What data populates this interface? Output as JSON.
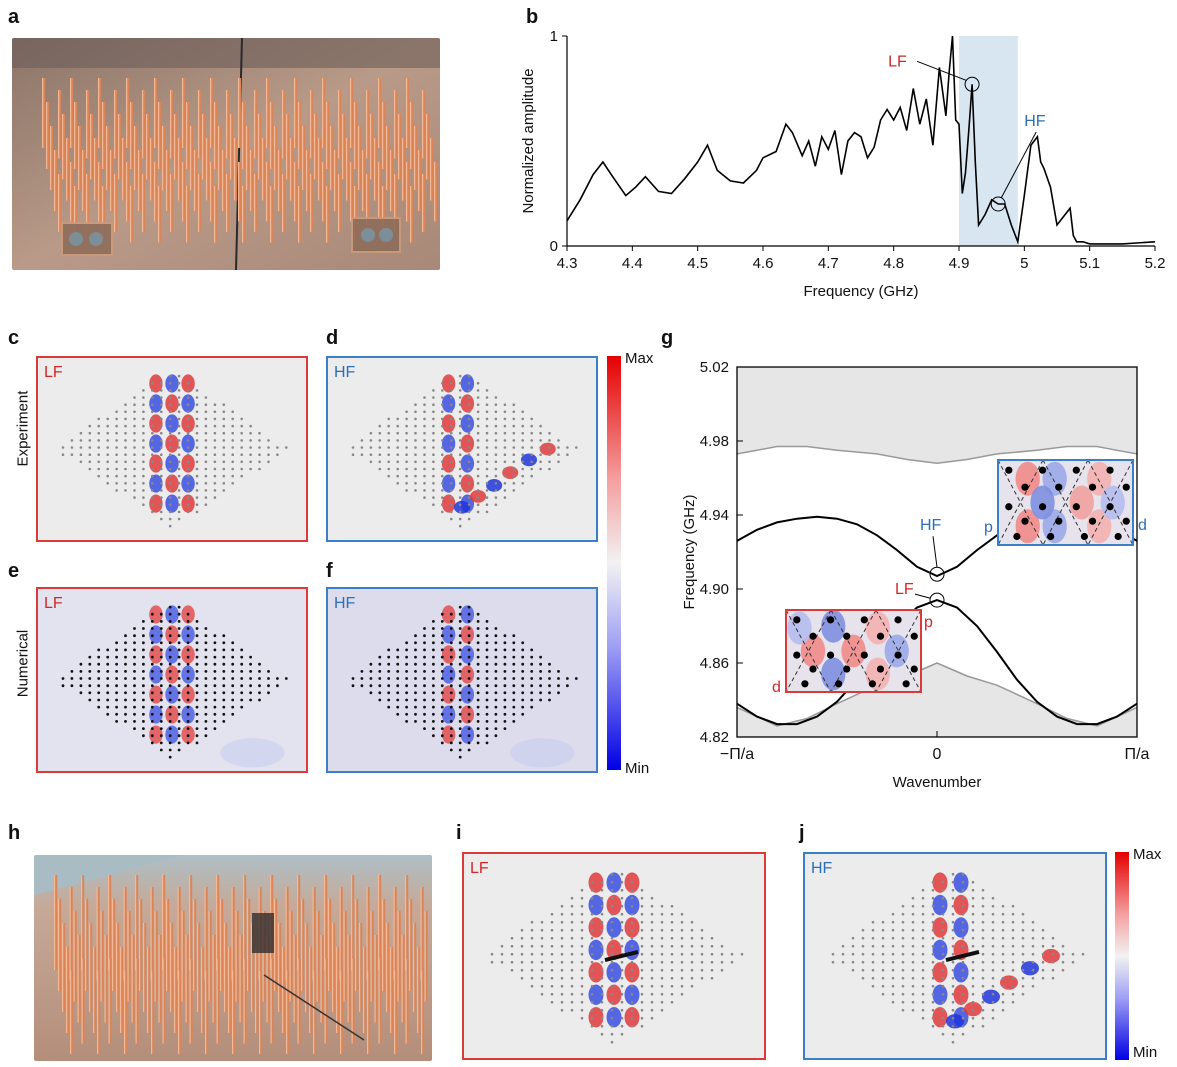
{
  "panels": {
    "a": "a",
    "b": "b",
    "c": "c",
    "d": "d",
    "e": "e",
    "f": "f",
    "g": "g",
    "h": "h",
    "i": "i",
    "j": "j"
  },
  "row_labels": {
    "experiment": "Experiment",
    "numerical": "Numerical"
  },
  "map_labels": {
    "lf": "LF",
    "hf": "HF"
  },
  "colorbar": {
    "max": "Max",
    "min": "Min"
  },
  "colors": {
    "red_frame": "#d93a3a",
    "blue_frame": "#3a7fc8",
    "band_highlight": "#d8e6f2",
    "gap_fill": "#e6e6e6"
  },
  "chart_data": [
    {
      "type": "line",
      "panel": "b",
      "xlabel": "Frequency (GHz)",
      "ylabel": "Normalized amplitude",
      "xlim": [
        4.3,
        5.2
      ],
      "ylim": [
        0,
        1
      ],
      "xticks": [
        "4.3",
        "4.4",
        "4.5",
        "4.6",
        "4.7",
        "4.8",
        "4.9",
        "5",
        "5.1",
        "5.2"
      ],
      "yticks": [
        "0",
        "1"
      ],
      "highlight_band": [
        4.9,
        4.99
      ],
      "annotations": [
        {
          "text": "LF",
          "x": 4.92,
          "y": 0.77
        },
        {
          "text": "HF",
          "x": 4.96,
          "y": 0.2
        }
      ],
      "series": [
        {
          "x": [
            4.3,
            4.32,
            4.34,
            4.355,
            4.37,
            4.39,
            4.405,
            4.42,
            4.44,
            4.46,
            4.48,
            4.5,
            4.515,
            4.53,
            4.55,
            4.57,
            4.59,
            4.6,
            4.62,
            4.635,
            4.645,
            4.66,
            4.67,
            4.68,
            4.69,
            4.7,
            4.71,
            4.72,
            4.73,
            4.74,
            4.75,
            4.76,
            4.77,
            4.78,
            4.79,
            4.8,
            4.81,
            4.82,
            4.83,
            4.84,
            4.85,
            4.86,
            4.87,
            4.88,
            4.885,
            4.89,
            4.895,
            4.9,
            4.905,
            4.91,
            4.915,
            4.92,
            4.925,
            4.93,
            4.94,
            4.95,
            4.96,
            4.97,
            4.98,
            4.99,
            5.0,
            5.01,
            5.02,
            5.025,
            5.03,
            5.04,
            5.05,
            5.06,
            5.07,
            5.075,
            5.08,
            5.09,
            5.1,
            5.15,
            5.2
          ],
          "y": [
            0.12,
            0.22,
            0.34,
            0.4,
            0.33,
            0.24,
            0.28,
            0.33,
            0.26,
            0.25,
            0.32,
            0.4,
            0.48,
            0.36,
            0.31,
            0.3,
            0.36,
            0.42,
            0.45,
            0.58,
            0.54,
            0.43,
            0.5,
            0.38,
            0.52,
            0.46,
            0.55,
            0.34,
            0.5,
            0.54,
            0.52,
            0.42,
            0.47,
            0.6,
            0.65,
            0.6,
            0.66,
            0.55,
            0.75,
            0.58,
            0.7,
            0.48,
            0.85,
            0.62,
            0.83,
            1.0,
            0.6,
            0.58,
            0.25,
            0.35,
            0.55,
            0.77,
            0.4,
            0.1,
            0.15,
            0.22,
            0.2,
            0.2,
            0.1,
            0.02,
            0.24,
            0.48,
            0.52,
            0.4,
            0.37,
            0.28,
            0.1,
            0.14,
            0.18,
            0.05,
            0.02,
            0.02,
            0.01,
            0.01,
            0.02
          ]
        }
      ]
    },
    {
      "type": "line",
      "panel": "g",
      "xlabel": "Wavenumber",
      "ylabel": "Frequency (GHz)",
      "xlim": [
        -1,
        1
      ],
      "ylim": [
        4.82,
        5.02
      ],
      "xticks": [
        "−Π/a",
        "0",
        "Π/a"
      ],
      "yticks": [
        "4.82",
        "4.86",
        "4.90",
        "4.94",
        "4.98",
        "5.02"
      ],
      "annotations": [
        {
          "text": "HF",
          "x": 0,
          "y": 4.908
        },
        {
          "text": "LF",
          "x": 0,
          "y": 4.894
        }
      ],
      "inset_labels": {
        "upper_p": "p",
        "upper_d": "d",
        "lower_p": "p",
        "lower_d": "d"
      },
      "upper_bulk_edge": {
        "x": [
          -1,
          -0.9,
          -0.8,
          -0.65,
          -0.5,
          -0.3,
          -0.15,
          0,
          0.15,
          0.3,
          0.5,
          0.65,
          0.8,
          0.9,
          1
        ],
        "y": [
          4.973,
          4.975,
          4.977,
          4.977,
          4.975,
          4.973,
          4.97,
          4.968,
          4.97,
          4.973,
          4.975,
          4.977,
          4.977,
          4.975,
          4.973
        ]
      },
      "lower_bulk_edge": {
        "x": [
          -1,
          -0.8,
          -0.65,
          -0.5,
          -0.3,
          -0.15,
          0,
          0.15,
          0.3,
          0.5,
          0.65,
          0.8,
          1
        ],
        "y": [
          4.836,
          4.826,
          4.83,
          4.838,
          4.848,
          4.853,
          4.86,
          4.853,
          4.848,
          4.838,
          4.83,
          4.826,
          4.836
        ]
      },
      "series": [
        {
          "name": "upper edge band",
          "x": [
            -1,
            -0.9,
            -0.8,
            -0.7,
            -0.6,
            -0.5,
            -0.4,
            -0.3,
            -0.2,
            -0.1,
            0,
            0.1,
            0.2,
            0.3,
            0.4,
            0.5,
            0.6,
            0.7,
            0.8,
            0.9,
            1
          ],
          "y": [
            4.926,
            4.932,
            4.936,
            4.938,
            4.939,
            4.938,
            4.935,
            4.929,
            4.921,
            4.912,
            4.907,
            4.912,
            4.921,
            4.929,
            4.935,
            4.938,
            4.939,
            4.938,
            4.936,
            4.932,
            4.926
          ]
        },
        {
          "name": "lower edge band",
          "x": [
            -1,
            -0.9,
            -0.8,
            -0.7,
            -0.6,
            -0.5,
            -0.4,
            -0.3,
            -0.2,
            -0.1,
            0,
            0.1,
            0.2,
            0.3,
            0.4,
            0.5,
            0.6,
            0.7,
            0.8,
            0.9,
            1
          ],
          "y": [
            4.838,
            4.831,
            4.827,
            4.827,
            4.831,
            4.839,
            4.851,
            4.866,
            4.88,
            4.89,
            4.894,
            4.89,
            4.88,
            4.866,
            4.851,
            4.839,
            4.831,
            4.827,
            4.827,
            4.831,
            4.838
          ]
        }
      ]
    }
  ]
}
